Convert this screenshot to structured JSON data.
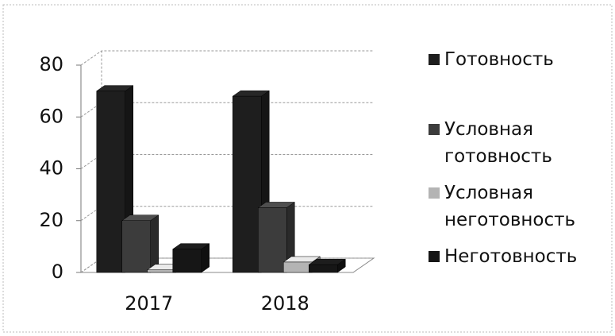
{
  "chart_data": {
    "type": "bar3d",
    "categories": [
      "2017",
      "2018"
    ],
    "series": [
      {
        "name": "Готовность",
        "color": "#1e1e1e",
        "values": [
          70,
          68
        ]
      },
      {
        "name": "Условная готовность",
        "color": "#3c3c3c",
        "values": [
          20,
          25
        ]
      },
      {
        "name": "Условная неготовность",
        "color": "#b4b4b4",
        "values": [
          1,
          4
        ]
      },
      {
        "name": "Неготовность",
        "color": "#161616",
        "values": [
          9,
          3
        ]
      }
    ],
    "ylim": [
      0,
      80
    ],
    "yticks": [
      0,
      20,
      40,
      60,
      80
    ],
    "grid": true,
    "legend": "right"
  }
}
